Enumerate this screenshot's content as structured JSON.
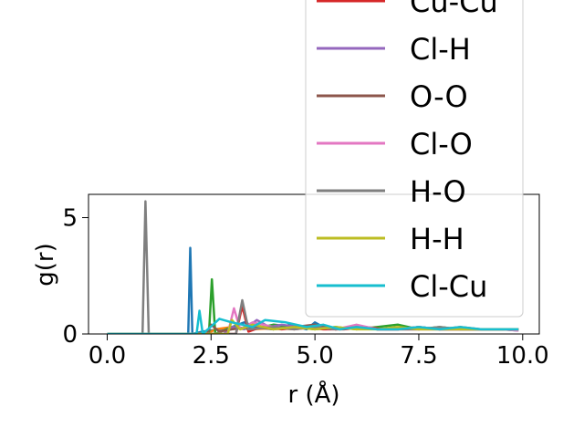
{
  "chart_data": {
    "type": "line",
    "xlabel": "r (Å)",
    "ylabel": "g(r)",
    "xlim": [
      -0.45,
      10.4
    ],
    "ylim": [
      0,
      6.0
    ],
    "xticks": [
      0.0,
      2.5,
      5.0,
      7.5,
      10.0
    ],
    "xtick_labels": [
      "0.0",
      "2.5",
      "5.0",
      "7.5",
      "10.0"
    ],
    "yticks": [
      0,
      5
    ],
    "ytick_labels": [
      "0",
      "5"
    ],
    "grid": false,
    "legend_position": "upper-right",
    "legend_entries": [
      {
        "name": "Cu-Cu",
        "color": "#d62728"
      },
      {
        "name": "Cl-H",
        "color": "#9467bd"
      },
      {
        "name": "O-O",
        "color": "#8c564b"
      },
      {
        "name": "Cl-O",
        "color": "#e377c2"
      },
      {
        "name": "H-O",
        "color": "#7f7f7f"
      },
      {
        "name": "H-H",
        "color": "#bcbd22"
      },
      {
        "name": "Cl-Cu",
        "color": "#17becf"
      }
    ],
    "series": [
      {
        "color": "#1f77b4",
        "x": [
          0,
          1.95,
          2.0,
          2.05,
          2.3,
          2.7,
          3.0,
          3.3,
          3.6,
          4.0,
          4.4,
          4.8,
          5.0,
          5.2,
          5.6,
          6.0,
          6.5,
          7.0,
          7.5,
          8.0,
          8.5,
          9.0,
          9.5,
          9.9
        ],
        "y": [
          0,
          0,
          3.7,
          0,
          0.1,
          0.2,
          0.3,
          0.5,
          0.3,
          0.2,
          0.4,
          0.2,
          0.5,
          0.3,
          0.2,
          0.3,
          0.2,
          0.2,
          0.3,
          0.2,
          0.2,
          0.2,
          0.2,
          0.15
        ]
      },
      {
        "color": "#ff7f0e",
        "x": [
          0,
          2.4,
          2.6,
          3.0,
          3.5,
          4.0,
          4.5,
          5.0,
          5.5,
          6.0,
          6.5,
          7.0,
          7.5,
          8.0,
          8.5,
          9.0,
          9.5,
          9.9
        ],
        "y": [
          0,
          0,
          0.2,
          0.3,
          0.2,
          0.25,
          0.2,
          0.3,
          0.2,
          0.25,
          0.2,
          0.2,
          0.25,
          0.2,
          0.2,
          0.2,
          0.2,
          0.2
        ]
      },
      {
        "color": "#2ca02c",
        "x": [
          0,
          2.45,
          2.52,
          2.6,
          3.0,
          3.5,
          4.0,
          4.5,
          5.0,
          5.5,
          6.0,
          6.5,
          7.0,
          7.5,
          8.0,
          8.5,
          9.0,
          9.5,
          9.9
        ],
        "y": [
          0,
          0,
          2.35,
          0,
          0.3,
          0.2,
          0.4,
          0.3,
          0.2,
          0.3,
          0.2,
          0.3,
          0.4,
          0.2,
          0.3,
          0.2,
          0.2,
          0.2,
          0.2
        ]
      },
      {
        "color": "#d62728",
        "x": [
          0,
          3.1,
          3.25,
          3.4,
          3.7,
          4.2,
          4.7,
          5.2,
          5.7,
          6.2,
          6.7,
          7.2,
          7.7,
          8.2,
          8.7,
          9.2,
          9.7
        ],
        "y": [
          0,
          0,
          1.2,
          0.1,
          0.3,
          0.2,
          0.3,
          0.2,
          0.2,
          0.3,
          0.2,
          0.2,
          0.2,
          0.2,
          0.2,
          0.2,
          0.2
        ]
      },
      {
        "color": "#9467bd",
        "x": [
          0,
          2.8,
          3.0,
          3.3,
          3.6,
          3.9,
          4.2,
          4.6,
          5.0,
          5.5,
          6.0,
          6.5,
          7.0,
          7.5,
          8.0,
          8.5,
          9.0,
          9.5,
          9.9
        ],
        "y": [
          0,
          0,
          0.3,
          0.2,
          0.6,
          0.3,
          0.4,
          0.3,
          0.3,
          0.2,
          0.3,
          0.2,
          0.2,
          0.3,
          0.2,
          0.2,
          0.2,
          0.2,
          0.2
        ]
      },
      {
        "color": "#8c564b",
        "x": [
          0,
          2.4,
          2.5,
          2.7,
          3.0,
          3.5,
          4.0,
          4.5,
          5.0,
          5.5,
          6.0,
          6.5,
          7.0,
          7.5,
          8.0,
          8.5,
          9.0,
          9.5,
          9.9
        ],
        "y": [
          0,
          0,
          0.4,
          0.1,
          0.2,
          0.3,
          0.2,
          0.3,
          0.4,
          0.2,
          0.3,
          0.2,
          0.2,
          0.3,
          0.2,
          0.3,
          0.2,
          0.2,
          0.2
        ]
      },
      {
        "color": "#e377c2",
        "x": [
          0,
          2.9,
          3.05,
          3.2,
          3.5,
          4.0,
          4.5,
          5.0,
          5.5,
          6.0,
          6.5,
          7.0,
          7.5,
          8.0,
          8.5,
          9.0,
          9.5,
          9.9
        ],
        "y": [
          0,
          0,
          1.1,
          0.2,
          0.5,
          0.3,
          0.2,
          0.3,
          0.2,
          0.4,
          0.2,
          0.2,
          0.3,
          0.2,
          0.2,
          0.2,
          0.2,
          0.15
        ]
      },
      {
        "color": "#7f7f7f",
        "x": [
          0,
          0.85,
          0.92,
          1.0,
          3.1,
          3.25,
          3.4,
          4.0,
          4.5,
          5.0,
          5.5,
          6.0,
          6.5,
          7.0,
          7.5,
          8.0,
          8.5,
          9.0,
          9.5,
          9.9
        ],
        "y": [
          0,
          0,
          5.7,
          0,
          0,
          1.45,
          0.2,
          0.3,
          0.2,
          0.3,
          0.2,
          0.3,
          0.2,
          0.2,
          0.2,
          0.3,
          0.2,
          0.2,
          0.2,
          0.2
        ]
      },
      {
        "color": "#bcbd22",
        "x": [
          0,
          2.9,
          3.0,
          3.2,
          3.5,
          4.0,
          4.5,
          5.0,
          5.5,
          6.0,
          6.5,
          7.0,
          7.5,
          8.0,
          8.5,
          9.0,
          9.5,
          9.9
        ],
        "y": [
          0,
          0,
          0.6,
          0.2,
          0.4,
          0.2,
          0.3,
          0.2,
          0.3,
          0.2,
          0.2,
          0.3,
          0.2,
          0.2,
          0.2,
          0.2,
          0.2,
          0.2
        ]
      },
      {
        "color": "#17becf",
        "x": [
          0,
          2.15,
          2.22,
          2.3,
          2.7,
          3.0,
          3.5,
          3.8,
          4.3,
          4.8,
          5.2,
          5.6,
          6.0,
          6.5,
          7.0,
          7.5,
          8.0,
          8.5,
          9.0,
          9.5,
          9.9
        ],
        "y": [
          0,
          0,
          1.0,
          0,
          0.65,
          0.5,
          0.3,
          0.6,
          0.5,
          0.3,
          0.4,
          0.2,
          0.3,
          0.2,
          0.2,
          0.3,
          0.2,
          0.3,
          0.2,
          0.2,
          0.2
        ]
      }
    ]
  }
}
